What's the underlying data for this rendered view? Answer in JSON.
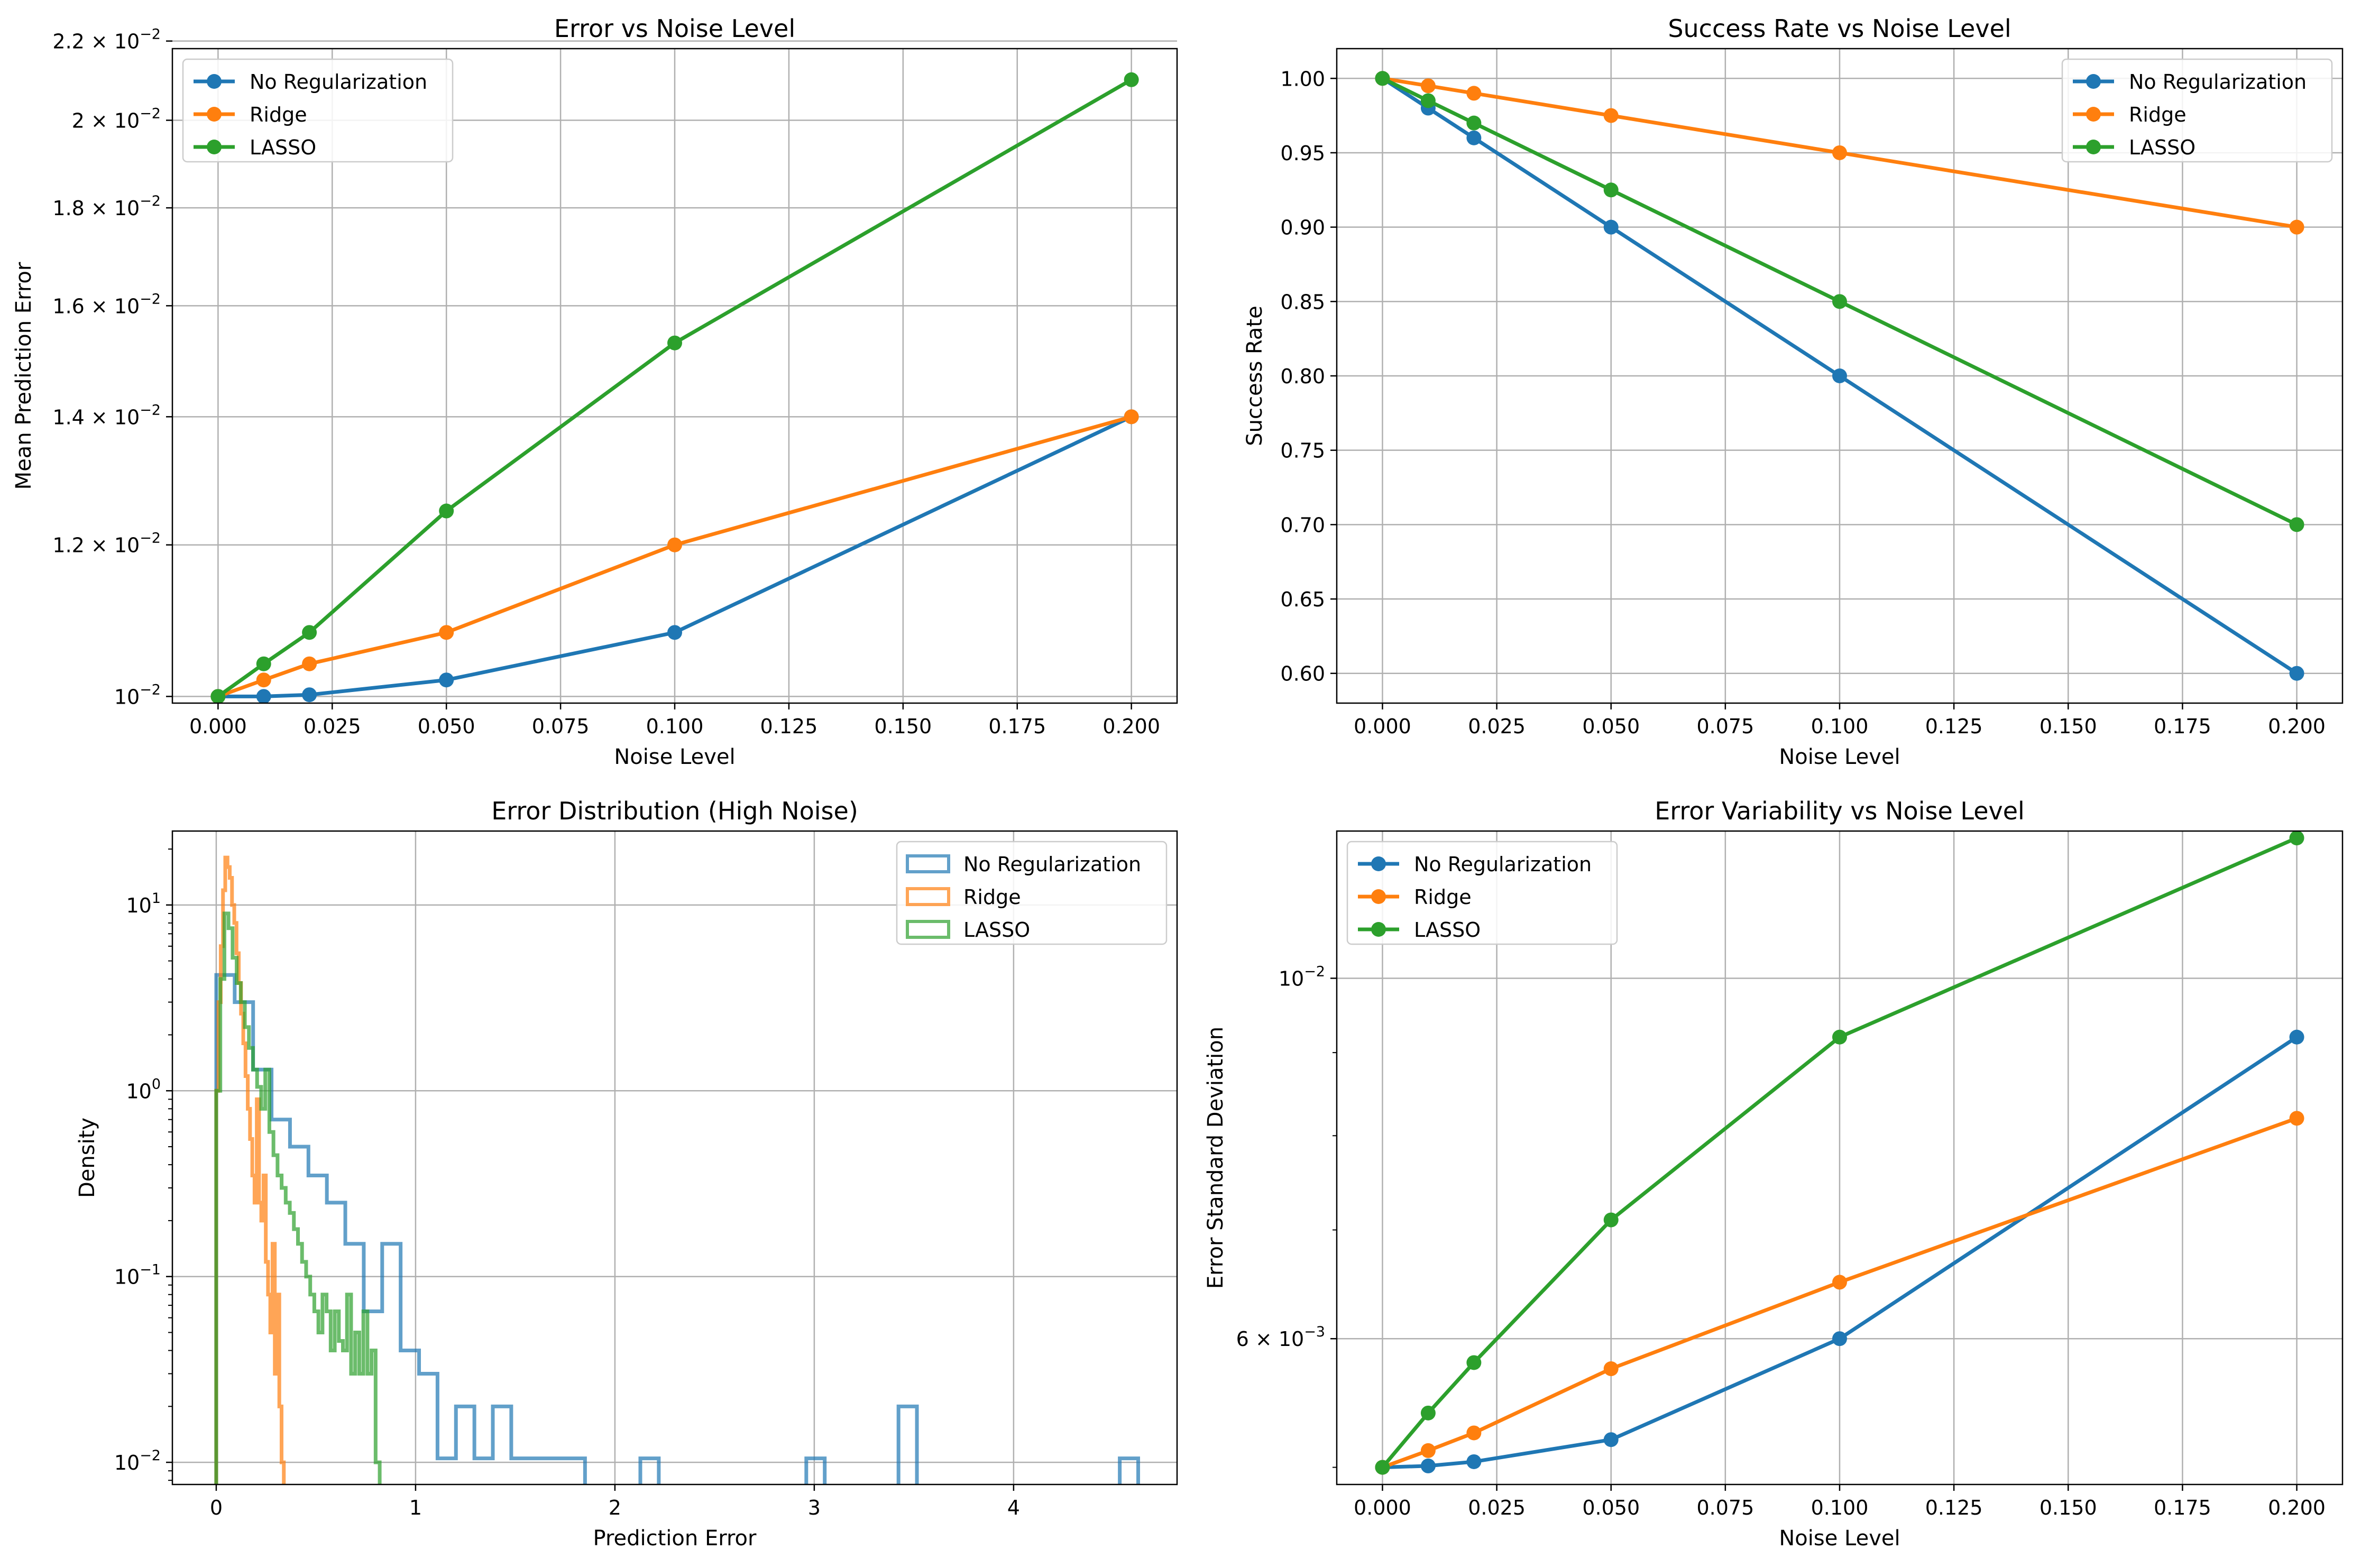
{
  "colors": {
    "none": "#1f77b4",
    "ridge": "#ff7f0e",
    "lasso": "#2ca02c",
    "grid": "#b0b0b0",
    "axis": "#000000"
  },
  "chart_data": [
    {
      "id": "err",
      "type": "line",
      "title": "Error vs Noise Level",
      "xlabel": "Noise Level",
      "ylabel": "Mean Prediction Error",
      "yscale": "log",
      "xlim": [
        -0.01,
        0.21
      ],
      "ylim": [
        0.00992,
        0.0218
      ],
      "x": [
        0.0,
        0.01,
        0.02,
        0.05,
        0.1,
        0.2
      ],
      "x_ticks": [
        0.0,
        0.025,
        0.05,
        0.075,
        0.1,
        0.125,
        0.15,
        0.175,
        0.2
      ],
      "x_tick_labels": [
        "0.000",
        "0.025",
        "0.050",
        "0.075",
        "0.100",
        "0.125",
        "0.150",
        "0.175",
        "0.200"
      ],
      "y_ticks": [
        0.01,
        0.012,
        0.014,
        0.016,
        0.018,
        0.02,
        0.022
      ],
      "y_tick_labels": [
        {
          "mant": "10",
          "exp": "−2"
        },
        {
          "mant": "1.2 × 10",
          "exp": "−2"
        },
        {
          "mant": "1.4 × 10",
          "exp": "−2"
        },
        {
          "mant": "1.6 × 10",
          "exp": "−2"
        },
        {
          "mant": "1.8 × 10",
          "exp": "−2"
        },
        {
          "mant": "2 × 10",
          "exp": "−2"
        },
        {
          "mant": "2.2 × 10",
          "exp": "−2"
        }
      ],
      "grid": true,
      "legend_position": "top-left",
      "series": [
        {
          "name": "No Regularization",
          "color_key": "none",
          "values": [
            0.01,
            0.01,
            0.01002,
            0.0102,
            0.0108,
            0.014
          ]
        },
        {
          "name": "Ridge",
          "color_key": "ridge",
          "values": [
            0.01,
            0.0102,
            0.0104,
            0.0108,
            0.012,
            0.014
          ]
        },
        {
          "name": "LASSO",
          "color_key": "lasso",
          "values": [
            0.01,
            0.0104,
            0.0108,
            0.0125,
            0.0153,
            0.021
          ]
        }
      ]
    },
    {
      "id": "succ",
      "type": "line",
      "title": "Success Rate vs Noise Level",
      "xlabel": "Noise Level",
      "ylabel": "Success Rate",
      "yscale": "linear",
      "xlim": [
        -0.01,
        0.21
      ],
      "ylim": [
        0.58,
        1.02
      ],
      "x": [
        0.0,
        0.01,
        0.02,
        0.05,
        0.1,
        0.2
      ],
      "x_ticks": [
        0.0,
        0.025,
        0.05,
        0.075,
        0.1,
        0.125,
        0.15,
        0.175,
        0.2
      ],
      "x_tick_labels": [
        "0.000",
        "0.025",
        "0.050",
        "0.075",
        "0.100",
        "0.125",
        "0.150",
        "0.175",
        "0.200"
      ],
      "y_ticks": [
        0.6,
        0.65,
        0.7,
        0.75,
        0.8,
        0.85,
        0.9,
        0.95,
        1.0
      ],
      "y_tick_labels": [
        "0.60",
        "0.65",
        "0.70",
        "0.75",
        "0.80",
        "0.85",
        "0.90",
        "0.95",
        "1.00"
      ],
      "grid": true,
      "legend_position": "top-right",
      "series": [
        {
          "name": "No Regularization",
          "color_key": "none",
          "values": [
            1.0,
            0.98,
            0.96,
            0.9,
            0.8,
            0.6
          ]
        },
        {
          "name": "Ridge",
          "color_key": "ridge",
          "values": [
            1.0,
            0.995,
            0.99,
            0.975,
            0.95,
            0.9
          ]
        },
        {
          "name": "LASSO",
          "color_key": "lasso",
          "values": [
            1.0,
            0.985,
            0.97,
            0.925,
            0.85,
            0.7
          ]
        }
      ]
    },
    {
      "id": "dist",
      "type": "histogram",
      "title": "Error Distribution (High Noise)",
      "xlabel": "Prediction Error",
      "ylabel": "Density",
      "yscale": "log",
      "xlim": [
        -0.22,
        4.82
      ],
      "ylim": [
        0.0076,
        25
      ],
      "x_ticks": [
        0,
        1,
        2,
        3,
        4
      ],
      "x_tick_labels": [
        "0",
        "1",
        "2",
        "3",
        "4"
      ],
      "y_ticks": [
        0.01,
        0.1,
        1,
        10
      ],
      "y_tick_labels": [
        {
          "mant": "10",
          "exp": "−2"
        },
        {
          "mant": "10",
          "exp": "−1"
        },
        {
          "mant": "10",
          "exp": "0"
        },
        {
          "mant": "10",
          "exp": "1"
        }
      ],
      "grid": true,
      "legend_position": "top-right",
      "series": [
        {
          "name": "No Regularization",
          "color_key": "none",
          "bin_start": 0.0,
          "bin_width": 0.0925,
          "values": [
            4.2,
            3.0,
            1.3,
            0.7,
            0.5,
            0.35,
            0.25,
            0.15,
            0.065,
            0.15,
            0.04,
            0.03,
            0.0105,
            0.02,
            0.0105,
            0.02,
            0.0105,
            0.0105,
            0.0105,
            0.0105,
            0,
            0,
            0,
            0.0105,
            0,
            0,
            0,
            0,
            0,
            0,
            0,
            0,
            0.0105,
            0,
            0,
            0,
            0,
            0.02,
            0,
            0,
            0,
            0,
            0,
            0,
            0,
            0,
            0,
            0,
            0,
            0.0105
          ]
        },
        {
          "name": "Ridge",
          "color_key": "ridge",
          "bin_start": 0.0,
          "bin_width": 0.0113,
          "values": [
            1.0,
            3.0,
            6.0,
            12.0,
            18.0,
            16.0,
            14.0,
            10.0,
            8.0,
            5.5,
            3.8,
            2.6,
            1.8,
            1.2,
            0.8,
            0.55,
            0.35,
            0.25,
            0.9,
            0.25,
            0.2,
            0.35,
            0.12,
            0.08,
            0.05,
            0.15,
            0.03,
            0.08,
            0.02,
            0.01
          ]
        },
        {
          "name": "LASSO",
          "color_key": "lasso",
          "bin_start": 0.0,
          "bin_width": 0.0205,
          "values": [
            1.0,
            4.0,
            9.0,
            7.5,
            5.2,
            3.8,
            3.0,
            2.2,
            1.7,
            1.3,
            1.05,
            0.8,
            1.3,
            0.6,
            0.45,
            0.35,
            0.3,
            0.25,
            0.22,
            0.18,
            0.15,
            0.12,
            0.1,
            0.08,
            0.065,
            0.05,
            0.08,
            0.065,
            0.04,
            0.065,
            0.045,
            0.04,
            0.08,
            0.03,
            0.05,
            0.03,
            0.065,
            0.03,
            0.04,
            0.01
          ]
        }
      ]
    },
    {
      "id": "std",
      "type": "line",
      "title": "Error Variability vs Noise Level",
      "xlabel": "Noise Level",
      "ylabel": "Error Standard Deviation",
      "yscale": "log",
      "xlim": [
        -0.01,
        0.21
      ],
      "ylim": [
        0.00488,
        0.01232
      ],
      "x": [
        0.0,
        0.01,
        0.02,
        0.05,
        0.1,
        0.2
      ],
      "x_ticks": [
        0.0,
        0.025,
        0.05,
        0.075,
        0.1,
        0.125,
        0.15,
        0.175,
        0.2
      ],
      "x_tick_labels": [
        "0.000",
        "0.025",
        "0.050",
        "0.075",
        "0.100",
        "0.125",
        "0.150",
        "0.175",
        "0.200"
      ],
      "y_ticks": [
        0.006,
        0.01
      ],
      "y_tick_labels": [
        {
          "mant": "6 × 10",
          "exp": "−3"
        },
        {
          "mant": "10",
          "exp": "−2"
        }
      ],
      "grid": true,
      "legend_position": "top-left",
      "series": [
        {
          "name": "No Regularization",
          "color_key": "none",
          "values": [
            0.005,
            0.00501,
            0.00504,
            0.0052,
            0.006,
            0.0092
          ]
        },
        {
          "name": "Ridge",
          "color_key": "ridge",
          "values": [
            0.005,
            0.00512,
            0.00525,
            0.00575,
            0.0065,
            0.0082
          ]
        },
        {
          "name": "LASSO",
          "color_key": "lasso",
          "values": [
            0.005,
            0.0054,
            0.0058,
            0.0071,
            0.0092,
            0.0122
          ]
        }
      ]
    }
  ]
}
